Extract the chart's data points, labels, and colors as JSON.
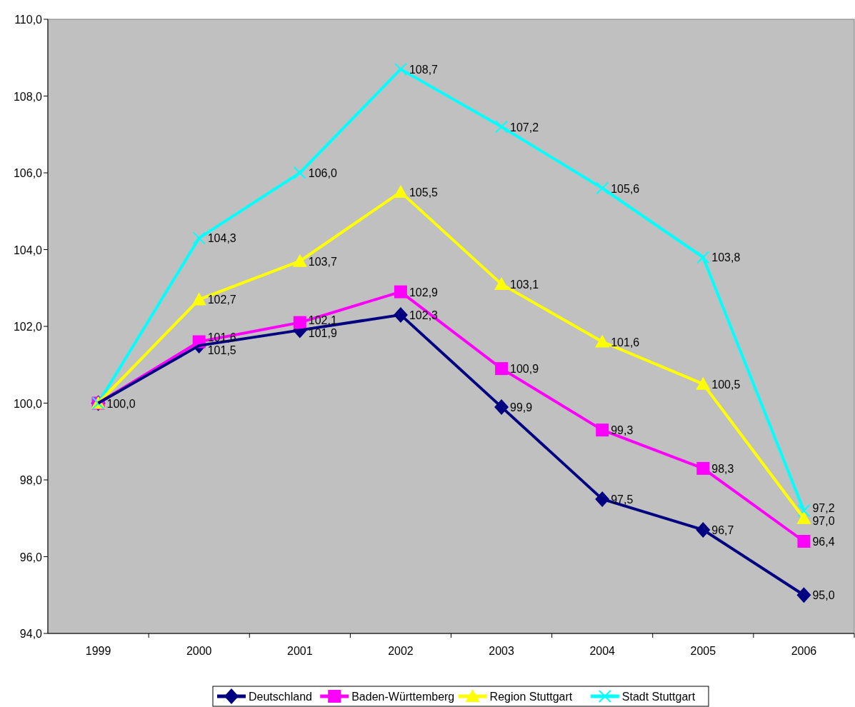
{
  "chart_data": {
    "type": "line",
    "categories": [
      "1999",
      "2000",
      "2001",
      "2002",
      "2003",
      "2004",
      "2005",
      "2006"
    ],
    "series": [
      {
        "name": "Deutschland",
        "color": "#000080",
        "marker": "diamond",
        "values": [
          100.0,
          101.5,
          101.9,
          102.3,
          99.9,
          97.5,
          96.7,
          95.0
        ],
        "value_labels": [
          "100,0",
          "101,5",
          "101,9",
          "102,3",
          "99,9",
          "97,5",
          "96,7",
          "95,0"
        ]
      },
      {
        "name": "Baden-Württemberg",
        "color": "#ff00ff",
        "marker": "square",
        "values": [
          100.0,
          101.6,
          102.1,
          102.9,
          100.9,
          99.3,
          98.3,
          96.4
        ],
        "value_labels": [
          null,
          "101,6",
          "102,1",
          "102,9",
          "100,9",
          "99,3",
          "98,3",
          "96,4"
        ]
      },
      {
        "name": "Region Stuttgart",
        "color": "#ffff00",
        "marker": "triangle",
        "values": [
          100.0,
          102.7,
          103.7,
          105.5,
          103.1,
          101.6,
          100.5,
          97.0
        ],
        "value_labels": [
          null,
          "102,7",
          "103,7",
          "105,5",
          "103,1",
          "101,6",
          "100,5",
          "97,0"
        ]
      },
      {
        "name": "Stadt Stuttgart",
        "color": "#00ffff",
        "marker": "cross",
        "values": [
          100.0,
          104.3,
          106.0,
          108.7,
          107.2,
          105.6,
          103.8,
          97.2
        ],
        "value_labels": [
          null,
          "104,3",
          "106,0",
          "108,7",
          "107,2",
          "105,6",
          "103,8",
          "97,2"
        ]
      }
    ],
    "ylim": [
      94,
      110
    ],
    "yticks": [
      {
        "value": 94,
        "label": "94,0"
      },
      {
        "value": 96,
        "label": "96,0"
      },
      {
        "value": 98,
        "label": "98,0"
      },
      {
        "value": 100,
        "label": "100,0"
      },
      {
        "value": 102,
        "label": "102,0"
      },
      {
        "value": 104,
        "label": "104,0"
      },
      {
        "value": 106,
        "label": "106,0"
      },
      {
        "value": 108,
        "label": "108,0"
      },
      {
        "value": 110,
        "label": "110,0"
      }
    ],
    "grid": false,
    "legend": "bottom",
    "line_style": "solid"
  }
}
